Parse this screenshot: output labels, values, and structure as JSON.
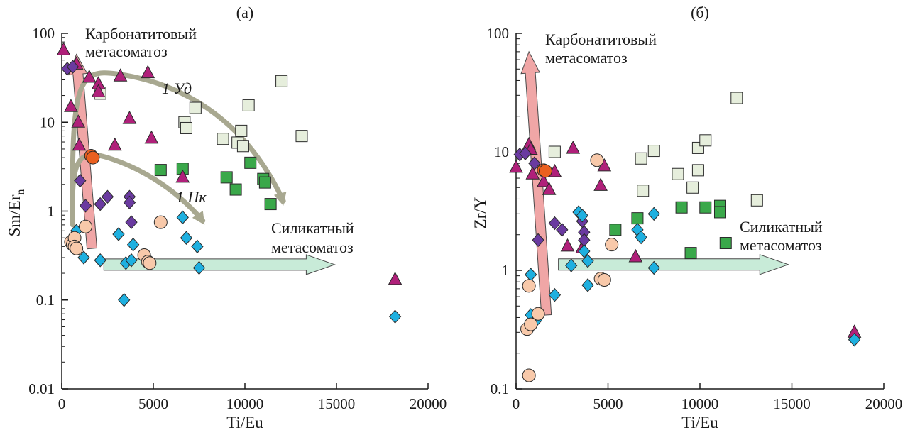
{
  "colors": {
    "kimberlite_green": "#3aa84a",
    "kimberlite_pale": "#e6eedc",
    "purple_triangle": "#b0207a",
    "dark_violet_diamond": "#6a3aa0",
    "cyan_diamond": "#1eb0e0",
    "peach_circle": "#f8c9aa",
    "orange_circle": "#ea6020",
    "carbonatite_arrow": "#f0a6a6",
    "silicate_arrow": "#c8ebd8",
    "trend_arrow": "#a8a890",
    "axis": "#1a1a1a"
  },
  "chart_data": [
    {
      "id": "a",
      "type": "scatter",
      "panel_label": "(a)",
      "xlabel": "Ti/Eu",
      "ylabel_main": "Sm/Er",
      "ylabel_sub": "n",
      "xlim": [
        0,
        20000
      ],
      "ylim": [
        0.01,
        100
      ],
      "yscale": "log",
      "xticks": [
        0,
        5000,
        10000,
        15000,
        20000
      ],
      "xtick_labels": [
        "0",
        "5000",
        "10000",
        "15000",
        "20000"
      ],
      "yticks": [
        0.01,
        0.1,
        1,
        10,
        100
      ],
      "ytick_labels": [
        "0.01",
        "0.1",
        "1",
        "10",
        "100"
      ],
      "annotations": {
        "carbonatite_line1": "Карбонатитовый",
        "carbonatite_line2": "метасоматоз",
        "silicate_line1": "Силикатный",
        "silicate_line2": "метасоматоз",
        "trend1": "1 Уд",
        "trend2": "1 Нк"
      },
      "series": [
        {
          "marker": "square",
          "color_key": "kimberlite_pale",
          "points": [
            [
              2100,
              21
            ],
            [
              6700,
              10
            ],
            [
              6800,
              8.6
            ],
            [
              7300,
              14.5
            ],
            [
              8800,
              6.5
            ],
            [
              9600,
              5.9
            ],
            [
              9900,
              5.4
            ],
            [
              9800,
              8
            ],
            [
              10200,
              15.5
            ],
            [
              12000,
              29
            ],
            [
              13100,
              7
            ]
          ]
        },
        {
          "marker": "square",
          "color_key": "kimberlite_green",
          "points": [
            [
              5400,
              2.9
            ],
            [
              6600,
              3
            ],
            [
              9000,
              2.4
            ],
            [
              9500,
              1.75
            ],
            [
              10300,
              3.5
            ],
            [
              11000,
              2.3
            ],
            [
              11100,
              2.1
            ],
            [
              11400,
              1.2
            ]
          ]
        },
        {
          "marker": "triangle",
          "color_key": "purple_triangle",
          "points": [
            [
              100,
              65
            ],
            [
              500,
              15
            ],
            [
              800,
              45
            ],
            [
              900,
              10
            ],
            [
              950,
              5.5
            ],
            [
              1500,
              32
            ],
            [
              2000,
              27
            ],
            [
              2000,
              22
            ],
            [
              2900,
              5.5
            ],
            [
              3200,
              33
            ],
            [
              3700,
              11
            ],
            [
              4700,
              36
            ],
            [
              4900,
              6.6
            ],
            [
              6600,
              2.4
            ],
            [
              18200,
              0.17
            ]
          ]
        },
        {
          "marker": "diamond",
          "color_key": "dark_violet_diamond",
          "points": [
            [
              300,
              40
            ],
            [
              600,
              42
            ],
            [
              1000,
              2.2
            ],
            [
              1300,
              1.15
            ],
            [
              2100,
              1.2
            ],
            [
              2500,
              1.45
            ],
            [
              3700,
              1.45
            ],
            [
              3700,
              1.25
            ],
            [
              3800,
              0.75
            ]
          ]
        },
        {
          "marker": "diamond",
          "color_key": "cyan_diamond",
          "points": [
            [
              800,
              0.6
            ],
            [
              1200,
              0.3
            ],
            [
              2100,
              0.28
            ],
            [
              3100,
              0.55
            ],
            [
              3400,
              0.1
            ],
            [
              3500,
              0.26
            ],
            [
              3800,
              0.28
            ],
            [
              3900,
              0.42
            ],
            [
              6600,
              0.85
            ],
            [
              6800,
              0.5
            ],
            [
              7400,
              0.4
            ],
            [
              7500,
              0.23
            ],
            [
              18200,
              0.065
            ]
          ]
        },
        {
          "marker": "circle",
          "color_key": "peach_circle",
          "points": [
            [
              500,
              0.45
            ],
            [
              600,
              0.42
            ],
            [
              700,
              0.5
            ],
            [
              700,
              0.4
            ],
            [
              800,
              0.38
            ],
            [
              1300,
              0.67
            ],
            [
              4500,
              0.32
            ],
            [
              4700,
              0.27
            ],
            [
              4800,
              0.26
            ],
            [
              5400,
              0.75
            ]
          ]
        },
        {
          "marker": "circle",
          "color_key": "orange_circle",
          "points": [
            [
              1600,
              4.2
            ],
            [
              1700,
              4.0
            ]
          ]
        }
      ]
    },
    {
      "id": "b",
      "type": "scatter",
      "panel_label": "(б)",
      "xlabel": "Ti/Eu",
      "ylabel_main": "Zr/Y",
      "ylabel_sub": "",
      "xlim": [
        0,
        20000
      ],
      "ylim": [
        0.1,
        100
      ],
      "yscale": "log",
      "xticks": [
        0,
        5000,
        10000,
        15000,
        20000
      ],
      "xtick_labels": [
        "0",
        "5000",
        "10000",
        "15000",
        "20000"
      ],
      "yticks": [
        0.1,
        1,
        10,
        100
      ],
      "ytick_labels": [
        "0.1",
        "1",
        "10",
        "100"
      ],
      "annotations": {
        "carbonatite_line1": "Карбонатитовый",
        "carbonatite_line2": "метасоматоз",
        "silicate_line1": "Силикатный",
        "silicate_line2": "метасоматоз"
      },
      "series": [
        {
          "marker": "square",
          "color_key": "kimberlite_pale",
          "points": [
            [
              2100,
              10
            ],
            [
              6800,
              8.8
            ],
            [
              6900,
              4.7
            ],
            [
              7500,
              10.2
            ],
            [
              8800,
              6.5
            ],
            [
              9600,
              5
            ],
            [
              9900,
              10.8
            ],
            [
              9900,
              7
            ],
            [
              10300,
              12.5
            ],
            [
              12000,
              28.5
            ],
            [
              13100,
              3.9
            ]
          ]
        },
        {
          "marker": "square",
          "color_key": "kimberlite_green",
          "points": [
            [
              5400,
              2.2
            ],
            [
              6600,
              2.75
            ],
            [
              9000,
              3.4
            ],
            [
              9500,
              1.4
            ],
            [
              10300,
              3.4
            ],
            [
              11100,
              3.5
            ],
            [
              11100,
              3.1
            ],
            [
              11400,
              1.7
            ]
          ]
        },
        {
          "marker": "triangle",
          "color_key": "purple_triangle",
          "points": [
            [
              0,
              7.4
            ],
            [
              700,
              11.5
            ],
            [
              800,
              10.5
            ],
            [
              900,
              6.5
            ],
            [
              1500,
              5.6
            ],
            [
              1800,
              4.8
            ],
            [
              2100,
              6.8
            ],
            [
              2800,
              1.6
            ],
            [
              3100,
              10.7
            ],
            [
              3600,
              1.55
            ],
            [
              4600,
              5.2
            ],
            [
              4800,
              7.6
            ],
            [
              6500,
              1.3
            ],
            [
              18400,
              0.3
            ]
          ]
        },
        {
          "marker": "diamond",
          "color_key": "dark_violet_diamond",
          "points": [
            [
              200,
              9.5
            ],
            [
              500,
              9.7
            ],
            [
              1000,
              8
            ],
            [
              1200,
              1.8
            ],
            [
              2100,
              2.5
            ],
            [
              2500,
              2.2
            ],
            [
              3600,
              2.6
            ],
            [
              3700,
              2.1
            ],
            [
              3700,
              1.8
            ]
          ]
        },
        {
          "marker": "diamond",
          "color_key": "cyan_diamond",
          "points": [
            [
              800,
              0.92
            ],
            [
              800,
              0.42
            ],
            [
              1100,
              0.38
            ],
            [
              2100,
              0.62
            ],
            [
              3000,
              1.1
            ],
            [
              3400,
              3.1
            ],
            [
              3600,
              2.9
            ],
            [
              3700,
              1.45
            ],
            [
              3900,
              1.2
            ],
            [
              3900,
              0.75
            ],
            [
              6600,
              2.2
            ],
            [
              6800,
              1.9
            ],
            [
              7500,
              3.0
            ],
            [
              7500,
              1.05
            ],
            [
              18400,
              0.26
            ]
          ]
        },
        {
          "marker": "circle",
          "color_key": "peach_circle",
          "points": [
            [
              600,
              0.32
            ],
            [
              700,
              0.13
            ],
            [
              700,
              0.74
            ],
            [
              800,
              0.35
            ],
            [
              1200,
              0.43
            ],
            [
              4400,
              8.5
            ],
            [
              4600,
              0.85
            ],
            [
              4800,
              0.83
            ],
            [
              5200,
              1.65
            ]
          ]
        },
        {
          "marker": "circle",
          "color_key": "orange_circle",
          "points": [
            [
              1500,
              7.0
            ],
            [
              1600,
              6.9
            ]
          ]
        }
      ]
    }
  ]
}
